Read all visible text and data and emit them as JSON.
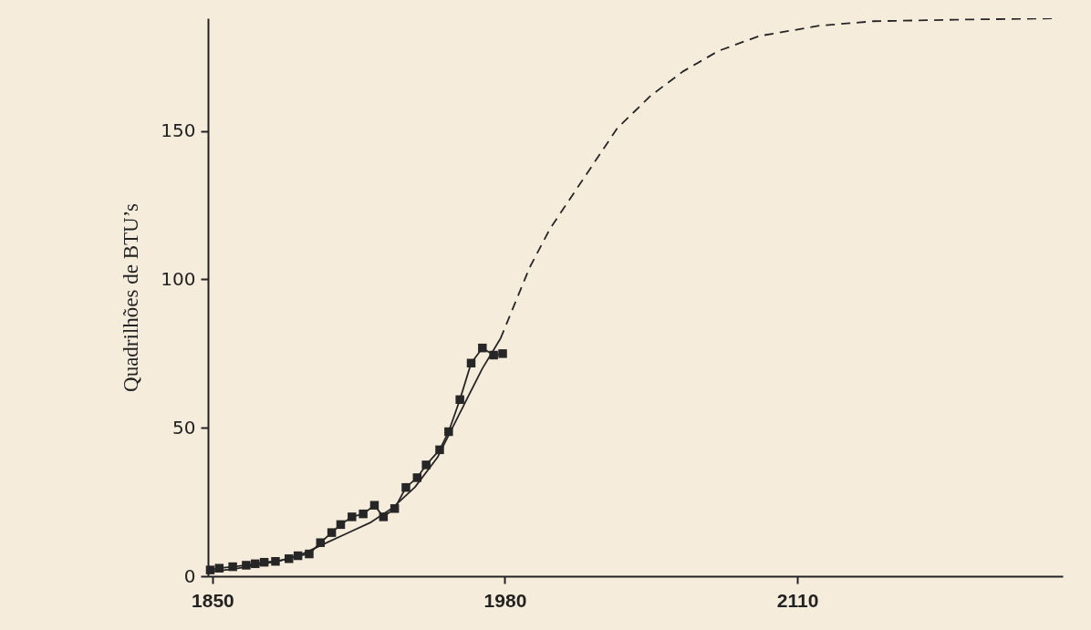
{
  "chart_data": {
    "type": "line",
    "ylabel": "Quadrilhões de BTU’s",
    "xlim": [
      1848,
      2228
    ],
    "ylim": [
      0,
      188
    ],
    "xticks": [
      1850,
      1980,
      2110
    ],
    "yticks": [
      0,
      50,
      100,
      150
    ],
    "grid": false,
    "series": [
      {
        "color": "#262626",
        "marker": "square",
        "line_style": "solid",
        "x": [
          1849,
          1853,
          1859,
          1865,
          1869,
          1873,
          1878,
          1884,
          1888,
          1893,
          1898,
          1903,
          1907,
          1912,
          1917,
          1922,
          1926,
          1931,
          1936,
          1941,
          1945,
          1951,
          1955,
          1960,
          1965,
          1970,
          1975,
          1979
        ],
        "values": [
          2.1,
          2.7,
          3.2,
          3.7,
          4.2,
          4.7,
          5.0,
          5.9,
          6.9,
          7.5,
          11.3,
          14.7,
          17.4,
          20.0,
          21.0,
          23.9,
          20.0,
          22.8,
          29.9,
          33.2,
          37.5,
          42.6,
          48.7,
          59.5,
          71.8,
          76.9,
          74.5,
          75.0
        ]
      },
      {
        "color": "#262626",
        "marker": "none",
        "line_style": "solid",
        "x": [
          1849,
          1860,
          1870,
          1880,
          1890,
          1900,
          1910,
          1920,
          1930,
          1940,
          1950,
          1960,
          1970,
          1978
        ],
        "values": [
          1.5,
          2.5,
          3.8,
          5.2,
          7.5,
          11,
          14.5,
          18,
          23,
          30,
          40,
          55,
          70,
          80
        ]
      },
      {
        "color": "#262626",
        "marker": "none",
        "line_style": "dashed",
        "x": [
          1978,
          1991,
          2000,
          2015,
          2030,
          2045,
          2059,
          2075,
          2093,
          2120,
          2144,
          2180,
          2226
        ],
        "values": [
          80,
          104,
          117,
          134,
          151,
          162,
          170,
          177,
          182,
          185.5,
          187,
          187.5,
          188
        ]
      }
    ]
  }
}
